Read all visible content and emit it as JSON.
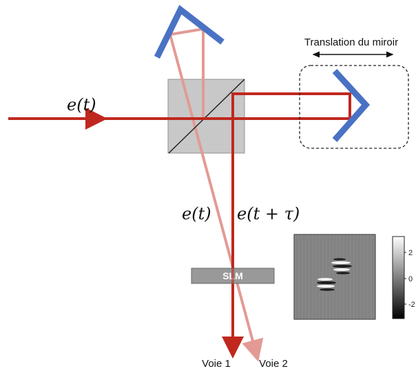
{
  "labels": {
    "translation": "Translation du miroir",
    "input_field": "e(t)",
    "arm1_field": "e(t)",
    "arm2_field": "e(t + τ)",
    "slm": "SLM",
    "voie1": "Voie 1",
    "voie2": "Voie 2"
  },
  "colorbar": {
    "ticks": [
      "2",
      "0",
      "-2"
    ]
  },
  "colors": {
    "beam_main": "#c0281e",
    "beam_faint": "#e39a95",
    "mirror": "#4a72c4",
    "beamsplitter": "#c8c8c8",
    "slm_fill": "#999999"
  }
}
